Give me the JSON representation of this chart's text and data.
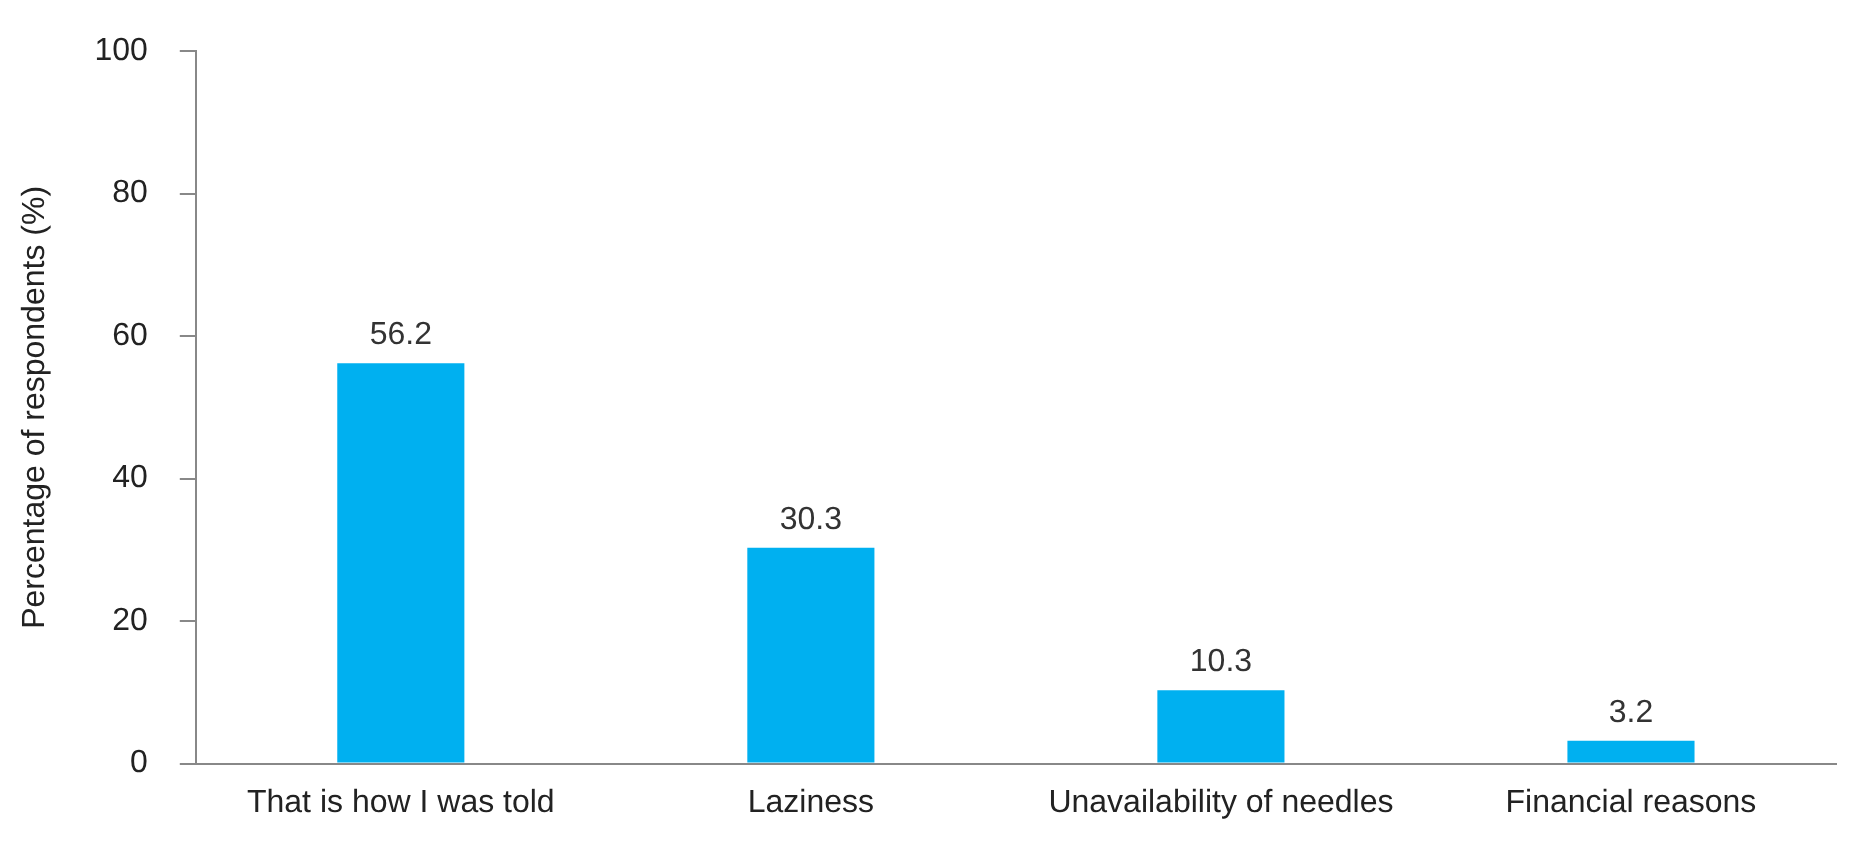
{
  "chart_data": {
    "type": "bar",
    "ylabel": "Percentage of respondents (%)",
    "categories": [
      "That is how I was told",
      "Laziness",
      "Unavailability of needles",
      "Financial reasons"
    ],
    "values": [
      56.2,
      30.3,
      10.3,
      3.2
    ],
    "color": "#00b0f0",
    "ylim": [
      0,
      100
    ],
    "yticks": [
      0,
      20,
      40,
      60,
      80,
      100
    ],
    "grid": false,
    "data_labels": true
  }
}
